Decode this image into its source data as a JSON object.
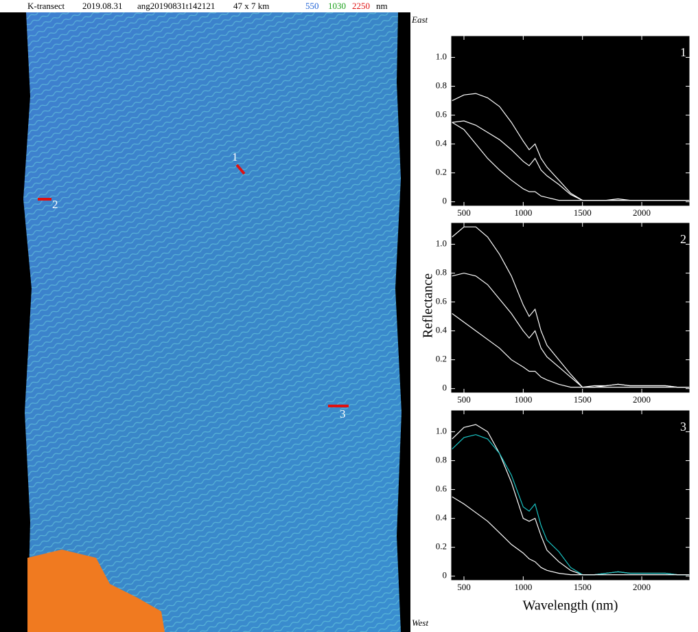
{
  "header": {
    "site": "K-transect",
    "date": "2019.08.31",
    "scene": "ang20190831t142121",
    "size": "47 x 7 km",
    "bands": [
      {
        "text": "550",
        "color": "#1a5fd6"
      },
      {
        "text": "1030",
        "color": "#1aa01a"
      },
      {
        "text": "2250",
        "color": "#e01010"
      }
    ],
    "unit": "nm"
  },
  "image": {
    "top_label": "East",
    "bottom_label": "West",
    "markers": [
      "1",
      "2",
      "3"
    ]
  },
  "chart_data": [
    {
      "type": "line",
      "label": "1",
      "x": [
        400,
        500,
        600,
        700,
        800,
        900,
        1000,
        1050,
        1100,
        1150,
        1200,
        1300,
        1400,
        1500,
        1600,
        1700,
        1800,
        1900,
        2000,
        2100,
        2200,
        2300,
        2400
      ],
      "series": [
        {
          "color": "#ffffff",
          "values": [
            0.7,
            0.74,
            0.75,
            0.72,
            0.66,
            0.55,
            0.42,
            0.36,
            0.4,
            0.3,
            0.24,
            0.15,
            0.06,
            0.01,
            0.01,
            0.01,
            0.02,
            0.01,
            0.01,
            0.01,
            0.01,
            0.01,
            0.01
          ]
        },
        {
          "color": "#ffffff",
          "values": [
            0.55,
            0.56,
            0.53,
            0.48,
            0.43,
            0.36,
            0.28,
            0.25,
            0.3,
            0.22,
            0.18,
            0.12,
            0.05,
            0.01,
            0.01,
            0.01,
            0.01,
            0.01,
            0.01,
            0.01,
            0.01,
            0.01,
            0.01
          ]
        },
        {
          "color": "#ffffff",
          "values": [
            0.55,
            0.5,
            0.4,
            0.3,
            0.22,
            0.15,
            0.09,
            0.07,
            0.07,
            0.04,
            0.03,
            0.01,
            0.01,
            0.01,
            0.01,
            0.01,
            0.01,
            0.01,
            0.01,
            0.01,
            0.01,
            0.01,
            0.01
          ]
        }
      ],
      "xlim": [
        390,
        2405
      ],
      "xticks": [
        500,
        1000,
        1500,
        2000
      ],
      "ylim": [
        -0.03,
        1.15
      ],
      "yticks": [
        0,
        0.2,
        0.4,
        0.6,
        0.8,
        {
          "value": 1,
          "label": "1.0"
        }
      ]
    },
    {
      "type": "line",
      "label": "2",
      "ylabel": "Reflectance",
      "x": [
        400,
        500,
        600,
        700,
        800,
        900,
        1000,
        1050,
        1100,
        1150,
        1200,
        1300,
        1400,
        1500,
        1600,
        1700,
        1800,
        1900,
        2000,
        2100,
        2200,
        2300,
        2400
      ],
      "series": [
        {
          "color": "#ffffff",
          "values": [
            1.05,
            1.12,
            1.12,
            1.05,
            0.93,
            0.78,
            0.58,
            0.5,
            0.55,
            0.4,
            0.3,
            0.2,
            0.1,
            0.01,
            0.02,
            0.02,
            0.03,
            0.02,
            0.02,
            0.02,
            0.02,
            0.01,
            0.01
          ]
        },
        {
          "color": "#ffffff",
          "values": [
            0.78,
            0.8,
            0.78,
            0.72,
            0.62,
            0.52,
            0.4,
            0.35,
            0.4,
            0.28,
            0.22,
            0.15,
            0.08,
            0.01,
            0.01,
            0.02,
            0.03,
            0.02,
            0.02,
            0.02,
            0.02,
            0.01,
            0.01
          ]
        },
        {
          "color": "#ffffff",
          "values": [
            0.52,
            0.46,
            0.4,
            0.34,
            0.28,
            0.2,
            0.15,
            0.12,
            0.12,
            0.08,
            0.06,
            0.03,
            0.01,
            0.01,
            0.01,
            0.01,
            0.01,
            0.01,
            0.01,
            0.01,
            0.01,
            0.01,
            0.01
          ]
        }
      ],
      "xlim": [
        390,
        2405
      ],
      "xticks": [
        500,
        1000,
        1500,
        2000
      ],
      "ylim": [
        -0.03,
        1.15
      ],
      "yticks": [
        0,
        0.2,
        0.4,
        0.6,
        0.8,
        {
          "value": 1,
          "label": "1.0"
        }
      ]
    },
    {
      "type": "line",
      "label": "3",
      "xlabel": "Wavelength (nm)",
      "x": [
        400,
        500,
        600,
        700,
        800,
        900,
        1000,
        1050,
        1100,
        1150,
        1200,
        1300,
        1400,
        1500,
        1600,
        1700,
        1800,
        1900,
        2000,
        2100,
        2200,
        2300,
        2400
      ],
      "series": [
        {
          "color": "#ffffff",
          "values": [
            0.95,
            1.03,
            1.05,
            1.0,
            0.85,
            0.65,
            0.4,
            0.38,
            0.4,
            0.28,
            0.18,
            0.1,
            0.04,
            0.01,
            0.01,
            0.02,
            0.03,
            0.02,
            0.02,
            0.02,
            0.02,
            0.01,
            0.01
          ]
        },
        {
          "color": "#19c6c6",
          "values": [
            0.88,
            0.96,
            0.98,
            0.95,
            0.85,
            0.7,
            0.48,
            0.45,
            0.5,
            0.35,
            0.25,
            0.17,
            0.06,
            0.01,
            0.01,
            0.02,
            0.03,
            0.02,
            0.02,
            0.02,
            0.02,
            0.01,
            0.01
          ]
        },
        {
          "color": "#ffffff",
          "values": [
            0.55,
            0.5,
            0.44,
            0.38,
            0.3,
            0.22,
            0.16,
            0.12,
            0.1,
            0.06,
            0.04,
            0.02,
            0.01,
            0.01,
            0.01,
            0.01,
            0.01,
            0.01,
            0.01,
            0.01,
            0.01,
            0.01,
            0.01
          ]
        }
      ],
      "xlim": [
        390,
        2405
      ],
      "xticks": [
        500,
        1000,
        1500,
        2000
      ],
      "ylim": [
        -0.03,
        1.15
      ],
      "yticks": [
        0,
        0.2,
        0.4,
        0.6,
        0.8,
        {
          "value": 1,
          "label": "1.0"
        }
      ]
    }
  ]
}
